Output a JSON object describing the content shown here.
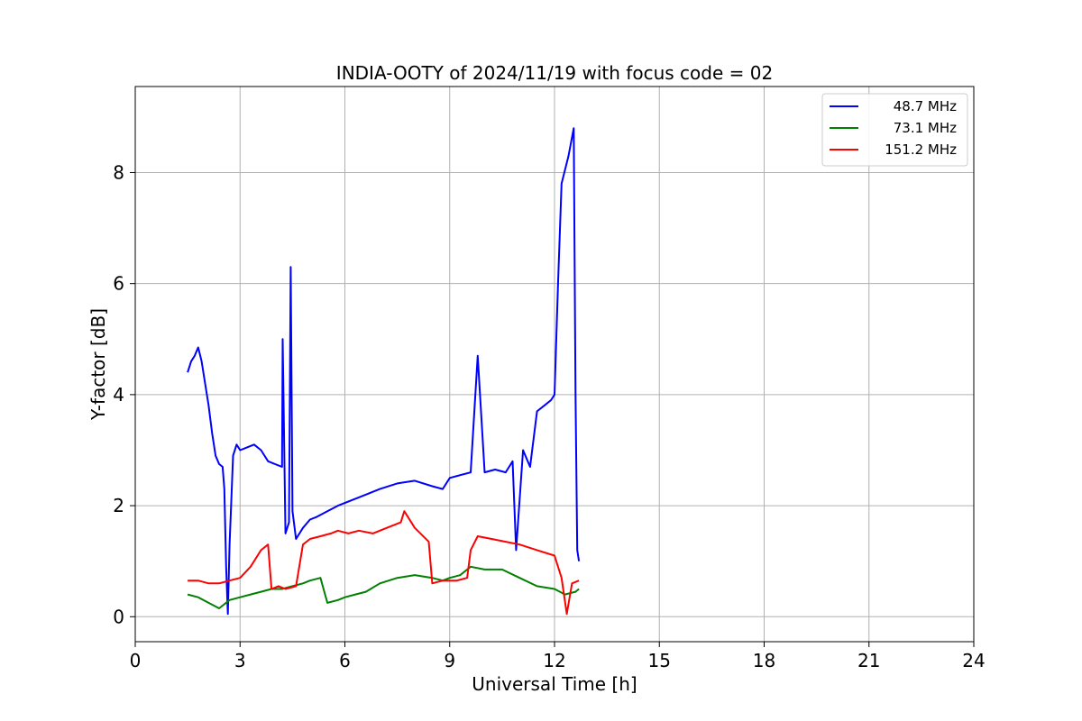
{
  "chart_data": {
    "type": "line",
    "title": "INDIA-OOTY of 2024/11/19 with focus code = 02",
    "xlabel": "Universal Time [h]",
    "ylabel": "Y-factor [dB]",
    "xlim": [
      0,
      24
    ],
    "ylim": [
      -0.45,
      9.55
    ],
    "xticks": [
      0,
      3,
      6,
      9,
      12,
      15,
      18,
      21,
      24
    ],
    "xtick_labels": [
      "0",
      "3",
      "6",
      "9",
      "12",
      "15",
      "18",
      "21",
      "24"
    ],
    "yticks": [
      0,
      2,
      4,
      6,
      8
    ],
    "ytick_labels": [
      "0",
      "2",
      "4",
      "6",
      "8"
    ],
    "grid": true,
    "legend_position": "top-right",
    "series": [
      {
        "name": "48.7 MHz",
        "color": "#0000ff",
        "x": [
          1.5,
          1.6,
          1.7,
          1.8,
          1.9,
          2.0,
          2.1,
          2.2,
          2.3,
          2.4,
          2.5,
          2.55,
          2.6,
          2.65,
          2.7,
          2.8,
          2.9,
          3.0,
          3.2,
          3.4,
          3.6,
          3.8,
          4.0,
          4.2,
          4.22,
          4.3,
          4.4,
          4.45,
          4.5,
          4.6,
          4.8,
          5.0,
          5.2,
          5.5,
          5.8,
          6.2,
          6.6,
          7.0,
          7.5,
          8.0,
          8.5,
          8.8,
          9.0,
          9.3,
          9.6,
          9.8,
          10.0,
          10.3,
          10.6,
          10.8,
          10.9,
          11.1,
          11.3,
          11.5,
          11.7,
          11.9,
          12.0,
          12.1,
          12.2,
          12.4,
          12.55,
          12.6,
          12.65,
          12.7
        ],
        "y": [
          4.4,
          4.6,
          4.7,
          4.85,
          4.6,
          4.2,
          3.8,
          3.3,
          2.9,
          2.75,
          2.7,
          2.3,
          0.9,
          0.05,
          1.3,
          2.9,
          3.1,
          3.0,
          3.05,
          3.1,
          3.0,
          2.8,
          2.75,
          2.7,
          5.0,
          1.5,
          1.7,
          6.3,
          1.9,
          1.4,
          1.6,
          1.75,
          1.8,
          1.9,
          2.0,
          2.1,
          2.2,
          2.3,
          2.4,
          2.45,
          2.35,
          2.3,
          2.5,
          2.55,
          2.6,
          4.7,
          2.6,
          2.65,
          2.6,
          2.8,
          1.2,
          3.0,
          2.7,
          3.7,
          3.8,
          3.9,
          4.0,
          6.0,
          7.8,
          8.3,
          8.8,
          4.0,
          1.2,
          1.0
        ]
      },
      {
        "name": "73.1 MHz",
        "color": "#008000",
        "x": [
          1.5,
          1.8,
          2.1,
          2.4,
          2.7,
          3.0,
          3.3,
          3.6,
          3.9,
          4.2,
          4.5,
          4.8,
          5.0,
          5.3,
          5.5,
          5.8,
          6.0,
          6.3,
          6.6,
          7.0,
          7.5,
          8.0,
          8.5,
          8.8,
          9.0,
          9.3,
          9.6,
          10.0,
          10.5,
          11.0,
          11.5,
          12.0,
          12.3,
          12.6,
          12.7
        ],
        "y": [
          0.4,
          0.35,
          0.25,
          0.15,
          0.3,
          0.35,
          0.4,
          0.45,
          0.5,
          0.5,
          0.55,
          0.6,
          0.65,
          0.7,
          0.25,
          0.3,
          0.35,
          0.4,
          0.45,
          0.6,
          0.7,
          0.75,
          0.7,
          0.65,
          0.7,
          0.75,
          0.9,
          0.85,
          0.85,
          0.7,
          0.55,
          0.5,
          0.4,
          0.45,
          0.5
        ]
      },
      {
        "name": "151.2 MHz",
        "color": "#ff0000",
        "x": [
          1.5,
          1.8,
          2.1,
          2.4,
          2.7,
          3.0,
          3.3,
          3.6,
          3.8,
          3.9,
          4.1,
          4.3,
          4.6,
          4.8,
          5.0,
          5.3,
          5.6,
          5.8,
          6.1,
          6.4,
          6.8,
          7.2,
          7.6,
          7.7,
          8.0,
          8.4,
          8.5,
          8.8,
          9.2,
          9.5,
          9.6,
          9.8,
          10.2,
          10.6,
          11.0,
          11.5,
          12.0,
          12.2,
          12.35,
          12.5,
          12.7
        ],
        "y": [
          0.65,
          0.65,
          0.6,
          0.6,
          0.65,
          0.7,
          0.9,
          1.2,
          1.3,
          0.5,
          0.55,
          0.5,
          0.55,
          1.3,
          1.4,
          1.45,
          1.5,
          1.55,
          1.5,
          1.55,
          1.5,
          1.6,
          1.7,
          1.9,
          1.6,
          1.35,
          0.6,
          0.65,
          0.65,
          0.7,
          1.2,
          1.45,
          1.4,
          1.35,
          1.3,
          1.2,
          1.1,
          0.7,
          0.05,
          0.6,
          0.65
        ]
      }
    ]
  }
}
